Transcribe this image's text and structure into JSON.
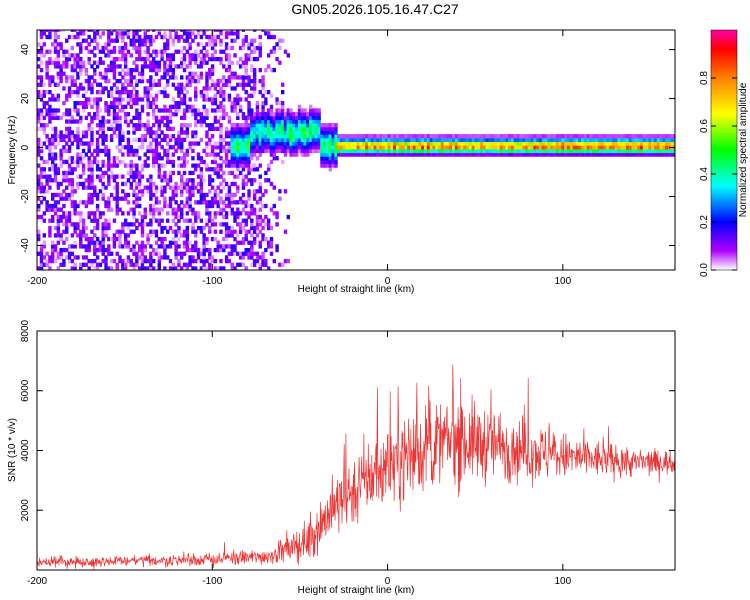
{
  "title": "GN05.2026.105.16.47.C27",
  "chart_data": [
    {
      "type": "heatmap",
      "xlabel": "Height of straight line (km)",
      "ylabel": "Frequency (Hz)",
      "xlim": [
        -200,
        164
      ],
      "ylim": [
        -50,
        48
      ],
      "xticks": [
        -200,
        -100,
        0,
        100
      ],
      "yticks": [
        -40,
        -20,
        0,
        20,
        40
      ],
      "colorbar": {
        "label": "Normalized spectral amplitude",
        "range": [
          0,
          1
        ],
        "ticks": [
          "0.0",
          "0.2",
          "0.4",
          "0.6",
          "0.8"
        ],
        "tick_values": [
          0,
          0.2,
          0.4,
          0.6,
          0.8
        ]
      },
      "features": {
        "noise_region_x": [
          -200,
          -55
        ],
        "signal_onset_x": -90,
        "signal_center_freq_hz": 0,
        "signal_bump_x": [
          -80,
          -40
        ],
        "signal_bump_freq_hz": 7
      }
    },
    {
      "type": "line",
      "xlabel": "Height of straight line (km)",
      "ylabel": "SNR (10 * v/v)",
      "xlim": [
        -200,
        164
      ],
      "ylim": [
        0,
        8000
      ],
      "xticks": [
        -200,
        -100,
        0,
        100
      ],
      "yticks": [
        2000,
        4000,
        6000,
        8000
      ],
      "series": [
        {
          "name": "SNR",
          "color": "#ee3333",
          "envelope_x": [
            -200,
            -150,
            -100,
            -70,
            -55,
            -45,
            -35,
            -25,
            -15,
            -5,
            5,
            15,
            25,
            35,
            45,
            60,
            80,
            100,
            120,
            140,
            164
          ],
          "envelope_mean": [
            250,
            300,
            350,
            450,
            700,
            1000,
            1800,
            2400,
            2900,
            3300,
            3700,
            3900,
            4100,
            4300,
            4300,
            4200,
            4000,
            3800,
            3700,
            3600,
            3600
          ],
          "envelope_spread": [
            200,
            200,
            250,
            300,
            500,
            800,
            1100,
            1300,
            1400,
            1500,
            1600,
            1600,
            1600,
            1700,
            1600,
            1400,
            1200,
            900,
            700,
            550,
            450
          ]
        }
      ]
    }
  ]
}
